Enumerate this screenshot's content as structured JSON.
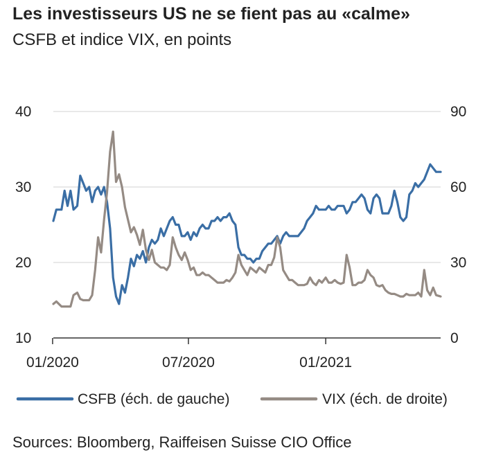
{
  "chart_data": {
    "type": "line",
    "title": "Les investisseurs US ne se fient pas au «calme»",
    "subtitle": "CSFB et indice VIX, en points",
    "source": "Sources: Bloomberg, Raiffeisen Suisse CIO Office",
    "x_range": [
      "2020-01-02",
      "2021-06-04"
    ],
    "x_ticks": [
      {
        "date": "2020-01-01",
        "label": "01/2020"
      },
      {
        "date": "2020-07-01",
        "label": "07/2020"
      },
      {
        "date": "2021-01-01",
        "label": "01/2021"
      }
    ],
    "y_left": {
      "min": 10,
      "max": 40,
      "ticks": [
        10,
        20,
        30,
        40
      ]
    },
    "y_right": {
      "min": 0,
      "max": 90,
      "ticks": [
        0,
        30,
        60,
        90
      ]
    },
    "grid": true,
    "legend_position": "bottom",
    "series": [
      {
        "name": "CSFB (éch. de gauche)",
        "axis": "left",
        "color": "#3a6ea5",
        "points": [
          [
            "2020-01-02",
            25.5
          ],
          [
            "2020-01-06",
            27.0
          ],
          [
            "2020-01-13",
            27.0
          ],
          [
            "2020-01-17",
            29.5
          ],
          [
            "2020-01-21",
            27.5
          ],
          [
            "2020-01-25",
            29.5
          ],
          [
            "2020-01-29",
            27.0
          ],
          [
            "2020-02-03",
            27.5
          ],
          [
            "2020-02-07",
            31.5
          ],
          [
            "2020-02-11",
            30.5
          ],
          [
            "2020-02-15",
            29.5
          ],
          [
            "2020-02-19",
            30.0
          ],
          [
            "2020-02-23",
            28.0
          ],
          [
            "2020-02-27",
            29.5
          ],
          [
            "2020-03-02",
            30.0
          ],
          [
            "2020-03-06",
            29.0
          ],
          [
            "2020-03-10",
            30.0
          ],
          [
            "2020-03-14",
            28.0
          ],
          [
            "2020-03-18",
            24.5
          ],
          [
            "2020-03-22",
            18.0
          ],
          [
            "2020-03-26",
            15.5
          ],
          [
            "2020-03-30",
            14.5
          ],
          [
            "2020-04-03",
            17.0
          ],
          [
            "2020-04-07",
            16.0
          ],
          [
            "2020-04-11",
            18.0
          ],
          [
            "2020-04-15",
            20.5
          ],
          [
            "2020-04-19",
            19.5
          ],
          [
            "2020-04-23",
            21.0
          ],
          [
            "2020-04-27",
            20.5
          ],
          [
            "2020-05-01",
            21.5
          ],
          [
            "2020-05-05",
            20.0
          ],
          [
            "2020-05-09",
            22.0
          ],
          [
            "2020-05-13",
            23.0
          ],
          [
            "2020-05-17",
            22.5
          ],
          [
            "2020-05-21",
            23.0
          ],
          [
            "2020-05-25",
            24.5
          ],
          [
            "2020-05-29",
            23.5
          ],
          [
            "2020-06-02",
            24.5
          ],
          [
            "2020-06-06",
            25.5
          ],
          [
            "2020-06-10",
            26.0
          ],
          [
            "2020-06-14",
            25.0
          ],
          [
            "2020-06-18",
            25.0
          ],
          [
            "2020-06-22",
            23.5
          ],
          [
            "2020-06-26",
            23.5
          ],
          [
            "2020-06-30",
            24.0
          ],
          [
            "2020-07-04",
            23.0
          ],
          [
            "2020-07-08",
            24.0
          ],
          [
            "2020-07-12",
            23.5
          ],
          [
            "2020-07-16",
            24.5
          ],
          [
            "2020-07-20",
            25.0
          ],
          [
            "2020-07-24",
            24.5
          ],
          [
            "2020-07-28",
            24.5
          ],
          [
            "2020-08-01",
            25.5
          ],
          [
            "2020-08-05",
            25.5
          ],
          [
            "2020-08-09",
            26.0
          ],
          [
            "2020-08-13",
            25.5
          ],
          [
            "2020-08-17",
            26.0
          ],
          [
            "2020-08-21",
            26.0
          ],
          [
            "2020-08-25",
            26.5
          ],
          [
            "2020-08-29",
            25.5
          ],
          [
            "2020-09-02",
            25.0
          ],
          [
            "2020-09-06",
            22.0
          ],
          [
            "2020-09-10",
            21.0
          ],
          [
            "2020-09-14",
            21.0
          ],
          [
            "2020-09-18",
            20.5
          ],
          [
            "2020-09-22",
            20.5
          ],
          [
            "2020-09-26",
            20.0
          ],
          [
            "2020-09-30",
            20.5
          ],
          [
            "2020-10-04",
            20.5
          ],
          [
            "2020-10-08",
            21.5
          ],
          [
            "2020-10-12",
            22.0
          ],
          [
            "2020-10-16",
            22.5
          ],
          [
            "2020-10-20",
            22.5
          ],
          [
            "2020-10-24",
            23.0
          ],
          [
            "2020-10-28",
            23.5
          ],
          [
            "2020-11-01",
            22.5
          ],
          [
            "2020-11-05",
            23.5
          ],
          [
            "2020-11-09",
            24.0
          ],
          [
            "2020-11-13",
            23.5
          ],
          [
            "2020-11-17",
            23.5
          ],
          [
            "2020-11-21",
            23.5
          ],
          [
            "2020-11-25",
            23.5
          ],
          [
            "2020-11-29",
            24.0
          ],
          [
            "2020-12-03",
            24.5
          ],
          [
            "2020-12-07",
            25.5
          ],
          [
            "2020-12-11",
            26.0
          ],
          [
            "2020-12-15",
            26.5
          ],
          [
            "2020-12-19",
            27.5
          ],
          [
            "2020-12-23",
            27.0
          ],
          [
            "2020-12-27",
            27.0
          ],
          [
            "2021-01-01",
            27.0
          ],
          [
            "2021-01-05",
            27.5
          ],
          [
            "2021-01-09",
            27.0
          ],
          [
            "2021-01-13",
            27.0
          ],
          [
            "2021-01-17",
            27.5
          ],
          [
            "2021-01-21",
            27.5
          ],
          [
            "2021-01-25",
            27.5
          ],
          [
            "2021-01-29",
            26.5
          ],
          [
            "2021-02-02",
            27.0
          ],
          [
            "2021-02-06",
            28.0
          ],
          [
            "2021-02-10",
            28.0
          ],
          [
            "2021-02-14",
            28.5
          ],
          [
            "2021-02-18",
            29.0
          ],
          [
            "2021-02-22",
            28.5
          ],
          [
            "2021-02-26",
            27.0
          ],
          [
            "2021-03-02",
            26.5
          ],
          [
            "2021-03-06",
            28.5
          ],
          [
            "2021-03-10",
            29.0
          ],
          [
            "2021-03-14",
            28.5
          ],
          [
            "2021-03-18",
            26.5
          ],
          [
            "2021-03-22",
            26.5
          ],
          [
            "2021-03-26",
            26.5
          ],
          [
            "2021-03-30",
            27.5
          ],
          [
            "2021-04-03",
            29.5
          ],
          [
            "2021-04-07",
            28.0
          ],
          [
            "2021-04-11",
            26.0
          ],
          [
            "2021-04-15",
            25.5
          ],
          [
            "2021-04-19",
            26.0
          ],
          [
            "2021-04-23",
            29.0
          ],
          [
            "2021-04-27",
            29.5
          ],
          [
            "2021-05-01",
            30.5
          ],
          [
            "2021-05-05",
            30.0
          ],
          [
            "2021-05-09",
            30.5
          ],
          [
            "2021-05-13",
            31.0
          ],
          [
            "2021-05-17",
            32.0
          ],
          [
            "2021-05-21",
            33.0
          ],
          [
            "2021-05-25",
            32.5
          ],
          [
            "2021-05-29",
            32.0
          ],
          [
            "2021-06-04",
            32.0
          ]
        ]
      },
      {
        "name": "VIX (éch. de droite)",
        "axis": "right",
        "color": "#958b84",
        "points": [
          [
            "2020-01-02",
            13.5
          ],
          [
            "2020-01-06",
            14.5
          ],
          [
            "2020-01-13",
            12.5
          ],
          [
            "2020-01-17",
            12.5
          ],
          [
            "2020-01-21",
            12.5
          ],
          [
            "2020-01-25",
            12.5
          ],
          [
            "2020-01-29",
            17.0
          ],
          [
            "2020-02-03",
            18.0
          ],
          [
            "2020-02-07",
            15.5
          ],
          [
            "2020-02-11",
            15.0
          ],
          [
            "2020-02-15",
            15.0
          ],
          [
            "2020-02-19",
            15.0
          ],
          [
            "2020-02-23",
            17.0
          ],
          [
            "2020-02-27",
            27.0
          ],
          [
            "2020-03-02",
            40.0
          ],
          [
            "2020-03-06",
            34.0
          ],
          [
            "2020-03-10",
            47.0
          ],
          [
            "2020-03-14",
            58.0
          ],
          [
            "2020-03-18",
            74.0
          ],
          [
            "2020-03-22",
            82.0
          ],
          [
            "2020-03-26",
            62.0
          ],
          [
            "2020-03-30",
            65.0
          ],
          [
            "2020-04-03",
            60.0
          ],
          [
            "2020-04-07",
            52.0
          ],
          [
            "2020-04-11",
            47.0
          ],
          [
            "2020-04-15",
            42.0
          ],
          [
            "2020-04-19",
            44.0
          ],
          [
            "2020-04-23",
            41.0
          ],
          [
            "2020-04-27",
            37.0
          ],
          [
            "2020-05-01",
            43.0
          ],
          [
            "2020-05-05",
            35.0
          ],
          [
            "2020-05-09",
            31.0
          ],
          [
            "2020-05-13",
            35.0
          ],
          [
            "2020-05-17",
            30.0
          ],
          [
            "2020-05-21",
            29.0
          ],
          [
            "2020-05-25",
            28.0
          ],
          [
            "2020-05-29",
            28.0
          ],
          [
            "2020-06-02",
            27.0
          ],
          [
            "2020-06-06",
            29.0
          ],
          [
            "2020-06-10",
            40.0
          ],
          [
            "2020-06-14",
            36.0
          ],
          [
            "2020-06-18",
            33.0
          ],
          [
            "2020-06-22",
            31.0
          ],
          [
            "2020-06-26",
            34.0
          ],
          [
            "2020-06-30",
            31.0
          ],
          [
            "2020-07-04",
            27.0
          ],
          [
            "2020-07-08",
            28.0
          ],
          [
            "2020-07-12",
            25.0
          ],
          [
            "2020-07-16",
            25.0
          ],
          [
            "2020-07-20",
            26.0
          ],
          [
            "2020-07-24",
            25.0
          ],
          [
            "2020-07-28",
            25.0
          ],
          [
            "2020-08-01",
            24.0
          ],
          [
            "2020-08-05",
            23.0
          ],
          [
            "2020-08-09",
            22.0
          ],
          [
            "2020-08-13",
            22.0
          ],
          [
            "2020-08-17",
            22.0
          ],
          [
            "2020-08-21",
            23.0
          ],
          [
            "2020-08-25",
            22.5
          ],
          [
            "2020-08-29",
            24.0
          ],
          [
            "2020-09-02",
            26.0
          ],
          [
            "2020-09-06",
            33.0
          ],
          [
            "2020-09-10",
            29.0
          ],
          [
            "2020-09-14",
            27.0
          ],
          [
            "2020-09-18",
            25.0
          ],
          [
            "2020-09-22",
            28.0
          ],
          [
            "2020-09-26",
            27.0
          ],
          [
            "2020-09-30",
            26.0
          ],
          [
            "2020-10-04",
            28.0
          ],
          [
            "2020-10-08",
            27.0
          ],
          [
            "2020-10-12",
            26.0
          ],
          [
            "2020-10-16",
            29.0
          ],
          [
            "2020-10-20",
            29.0
          ],
          [
            "2020-10-24",
            32.0
          ],
          [
            "2020-10-28",
            40.0
          ],
          [
            "2020-11-01",
            36.0
          ],
          [
            "2020-11-05",
            27.0
          ],
          [
            "2020-11-09",
            25.0
          ],
          [
            "2020-11-13",
            23.0
          ],
          [
            "2020-11-17",
            23.0
          ],
          [
            "2020-11-21",
            22.0
          ],
          [
            "2020-11-25",
            21.0
          ],
          [
            "2020-11-29",
            21.0
          ],
          [
            "2020-12-03",
            21.0
          ],
          [
            "2020-12-07",
            21.5
          ],
          [
            "2020-12-11",
            24.0
          ],
          [
            "2020-12-15",
            22.0
          ],
          [
            "2020-12-19",
            21.0
          ],
          [
            "2020-12-23",
            23.0
          ],
          [
            "2020-12-27",
            22.0
          ],
          [
            "2021-01-01",
            24.0
          ],
          [
            "2021-01-05",
            22.0
          ],
          [
            "2021-01-09",
            22.0
          ],
          [
            "2021-01-13",
            23.0
          ],
          [
            "2021-01-17",
            22.0
          ],
          [
            "2021-01-21",
            21.5
          ],
          [
            "2021-01-25",
            22.0
          ],
          [
            "2021-01-29",
            33.0
          ],
          [
            "2021-02-02",
            28.0
          ],
          [
            "2021-02-06",
            21.0
          ],
          [
            "2021-02-10",
            21.0
          ],
          [
            "2021-02-14",
            22.0
          ],
          [
            "2021-02-18",
            22.0
          ],
          [
            "2021-02-22",
            23.0
          ],
          [
            "2021-02-26",
            27.0
          ],
          [
            "2021-03-02",
            25.0
          ],
          [
            "2021-03-06",
            24.0
          ],
          [
            "2021-03-10",
            21.0
          ],
          [
            "2021-03-14",
            20.5
          ],
          [
            "2021-03-18",
            21.0
          ],
          [
            "2021-03-22",
            19.0
          ],
          [
            "2021-03-26",
            18.0
          ],
          [
            "2021-03-30",
            17.5
          ],
          [
            "2021-04-03",
            17.5
          ],
          [
            "2021-04-07",
            17.0
          ],
          [
            "2021-04-11",
            16.5
          ],
          [
            "2021-04-15",
            16.5
          ],
          [
            "2021-04-19",
            17.5
          ],
          [
            "2021-04-23",
            17.0
          ],
          [
            "2021-04-27",
            17.0
          ],
          [
            "2021-05-01",
            17.0
          ],
          [
            "2021-05-05",
            18.0
          ],
          [
            "2021-05-09",
            16.5
          ],
          [
            "2021-05-13",
            27.0
          ],
          [
            "2021-05-17",
            19.0
          ],
          [
            "2021-05-21",
            17.0
          ],
          [
            "2021-05-25",
            20.0
          ],
          [
            "2021-05-29",
            17.0
          ],
          [
            "2021-06-04",
            16.5
          ]
        ]
      }
    ]
  }
}
